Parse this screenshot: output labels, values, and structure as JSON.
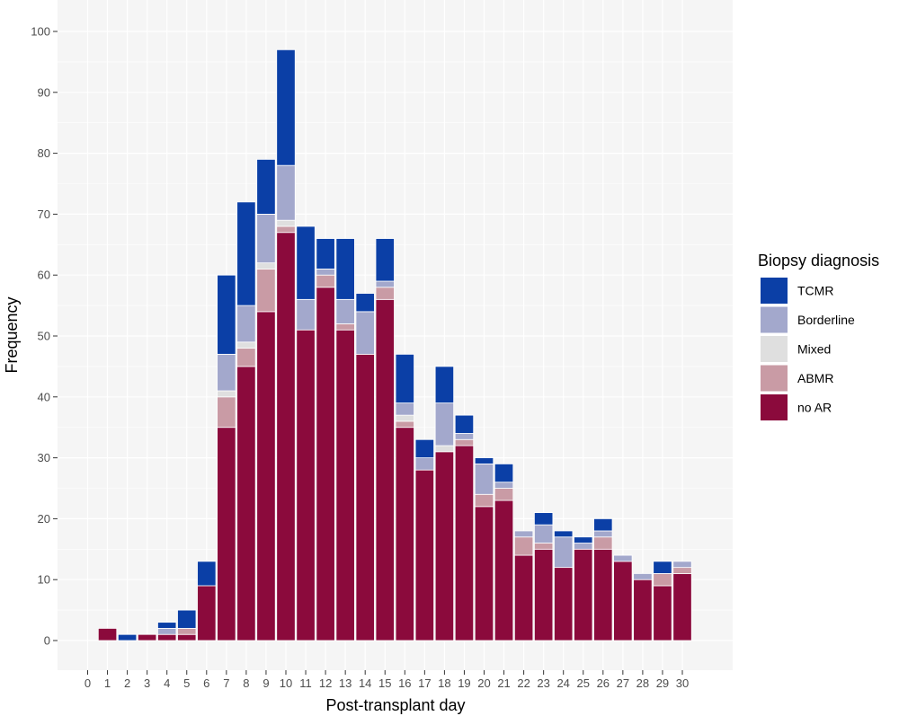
{
  "chart_data": {
    "type": "bar",
    "stacked": true,
    "xlabel": "Post-transplant day",
    "ylabel": "Frequency",
    "ylim": [
      0,
      100
    ],
    "y_ticks": [
      0,
      10,
      20,
      30,
      40,
      50,
      60,
      70,
      80,
      90,
      100
    ],
    "categories": [
      0,
      1,
      2,
      3,
      4,
      5,
      6,
      7,
      8,
      9,
      10,
      11,
      12,
      13,
      14,
      15,
      16,
      17,
      18,
      19,
      20,
      21,
      22,
      23,
      24,
      25,
      26,
      27,
      28,
      29,
      30
    ],
    "category_labels": [
      "0",
      "1",
      "2",
      "3",
      "4",
      "5",
      "6",
      "7",
      "8",
      "9",
      "10",
      "11",
      "12",
      "13",
      "14",
      "15",
      "16",
      "17",
      "18",
      "19",
      "20",
      "21",
      "22",
      "23",
      "24",
      "25",
      "26",
      "27",
      "28",
      "29",
      "30"
    ],
    "legend_title": "Biopsy diagnosis",
    "legend_position": "right",
    "grid": true,
    "series": [
      {
        "name": "no AR",
        "color": "#8b0a3c",
        "values": [
          0,
          2,
          0,
          1,
          1,
          1,
          9,
          35,
          45,
          54,
          67,
          51,
          58,
          51,
          47,
          56,
          35,
          28,
          31,
          32,
          22,
          23,
          14,
          15,
          12,
          15,
          15,
          13,
          10,
          9,
          11
        ]
      },
      {
        "name": "ABMR",
        "color": "#c99ba5",
        "values": [
          0,
          0,
          0,
          0,
          0,
          1,
          0,
          5,
          3,
          7,
          1,
          0,
          2,
          1,
          0,
          2,
          1,
          0,
          0,
          1,
          2,
          2,
          3,
          1,
          0,
          0,
          2,
          0,
          0,
          2,
          1
        ]
      },
      {
        "name": "Mixed",
        "color": "#dfdfdf",
        "values": [
          0,
          0,
          0,
          0,
          0,
          0,
          0,
          1,
          1,
          1,
          1,
          0,
          0,
          0,
          0,
          0,
          1,
          0,
          1,
          0,
          0,
          0,
          0,
          0,
          0,
          0,
          0,
          0,
          0,
          0,
          0
        ]
      },
      {
        "name": "Borderline",
        "color": "#a3a8cc",
        "values": [
          0,
          0,
          0,
          0,
          1,
          0,
          0,
          6,
          6,
          8,
          9,
          5,
          1,
          4,
          7,
          1,
          2,
          2,
          7,
          1,
          5,
          1,
          1,
          3,
          5,
          1,
          1,
          1,
          1,
          0,
          1
        ]
      },
      {
        "name": "TCMR",
        "color": "#0b3fa6",
        "values": [
          0,
          0,
          1,
          0,
          1,
          3,
          4,
          13,
          17,
          9,
          19,
          12,
          5,
          10,
          3,
          7,
          8,
          3,
          6,
          3,
          1,
          3,
          0,
          2,
          1,
          1,
          2,
          0,
          0,
          2,
          0
        ]
      }
    ],
    "legend_order": [
      "TCMR",
      "Borderline",
      "Mixed",
      "ABMR",
      "no AR"
    ]
  }
}
